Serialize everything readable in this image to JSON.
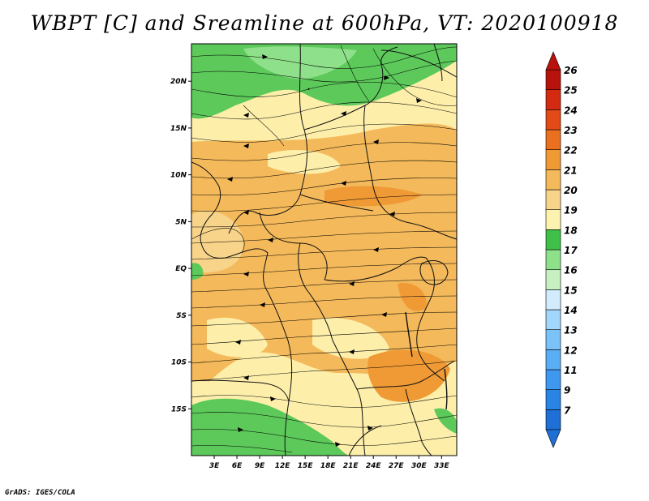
{
  "title": "WBPT [C] and Sreamline at 600hPa, VT: 2020100918",
  "footer": "GrADS: IGES/COLA",
  "map": {
    "variable": "Wet-bulb potential temperature",
    "units": "C",
    "level": "600hPa",
    "valid_time": "2020100918",
    "lon_range": [
      0,
      35
    ],
    "lat_range": [
      -20,
      24
    ],
    "lat_ticks": [
      {
        "value": 20,
        "label": "20N"
      },
      {
        "value": 15,
        "label": "15N"
      },
      {
        "value": 10,
        "label": "10N"
      },
      {
        "value": 5,
        "label": "5N"
      },
      {
        "value": 0,
        "label": "EQ"
      },
      {
        "value": -5,
        "label": "5S"
      },
      {
        "value": -10,
        "label": "10S"
      },
      {
        "value": -15,
        "label": "15S"
      }
    ],
    "lon_ticks": [
      {
        "value": 3,
        "label": "3E"
      },
      {
        "value": 6,
        "label": "6E"
      },
      {
        "value": 9,
        "label": "9E"
      },
      {
        "value": 12,
        "label": "12E"
      },
      {
        "value": 15,
        "label": "15E"
      },
      {
        "value": 18,
        "label": "18E"
      },
      {
        "value": 21,
        "label": "21E"
      },
      {
        "value": 24,
        "label": "24E"
      },
      {
        "value": 27,
        "label": "27E"
      },
      {
        "value": 30,
        "label": "30E"
      },
      {
        "value": 33,
        "label": "33E"
      }
    ],
    "colorbar": [
      {
        "label": "7",
        "color": "#1e6fd6"
      },
      {
        "label": "9",
        "color": "#2a84e6"
      },
      {
        "label": "11",
        "color": "#3e98f0"
      },
      {
        "label": "12",
        "color": "#5aaef5"
      },
      {
        "label": "13",
        "color": "#7ac2f8"
      },
      {
        "label": "14",
        "color": "#a2d6fb"
      },
      {
        "label": "15",
        "color": "#d2ecfd"
      },
      {
        "label": "16",
        "color": "#c6f0c0"
      },
      {
        "label": "17",
        "color": "#8fe08a"
      },
      {
        "label": "18",
        "color": "#3ec049"
      },
      {
        "label": "19",
        "color": "#fdf3b0"
      },
      {
        "label": "20",
        "color": "#f7d48a"
      },
      {
        "label": "21",
        "color": "#f4b95a"
      },
      {
        "label": "22",
        "color": "#f09a36"
      },
      {
        "label": "23",
        "color": "#ea7020"
      },
      {
        "label": "24",
        "color": "#e24a18"
      },
      {
        "label": "25",
        "color": "#d42a12"
      },
      {
        "label": "26",
        "color": "#b8120c"
      }
    ],
    "fill_colors": {
      "green_dark": "#5cc95a",
      "green_light": "#8fe08a",
      "yellow": "#fdefaa",
      "orange_light": "#f7d48a",
      "orange": "#f4b95a",
      "orange_dark": "#f09a36"
    }
  }
}
